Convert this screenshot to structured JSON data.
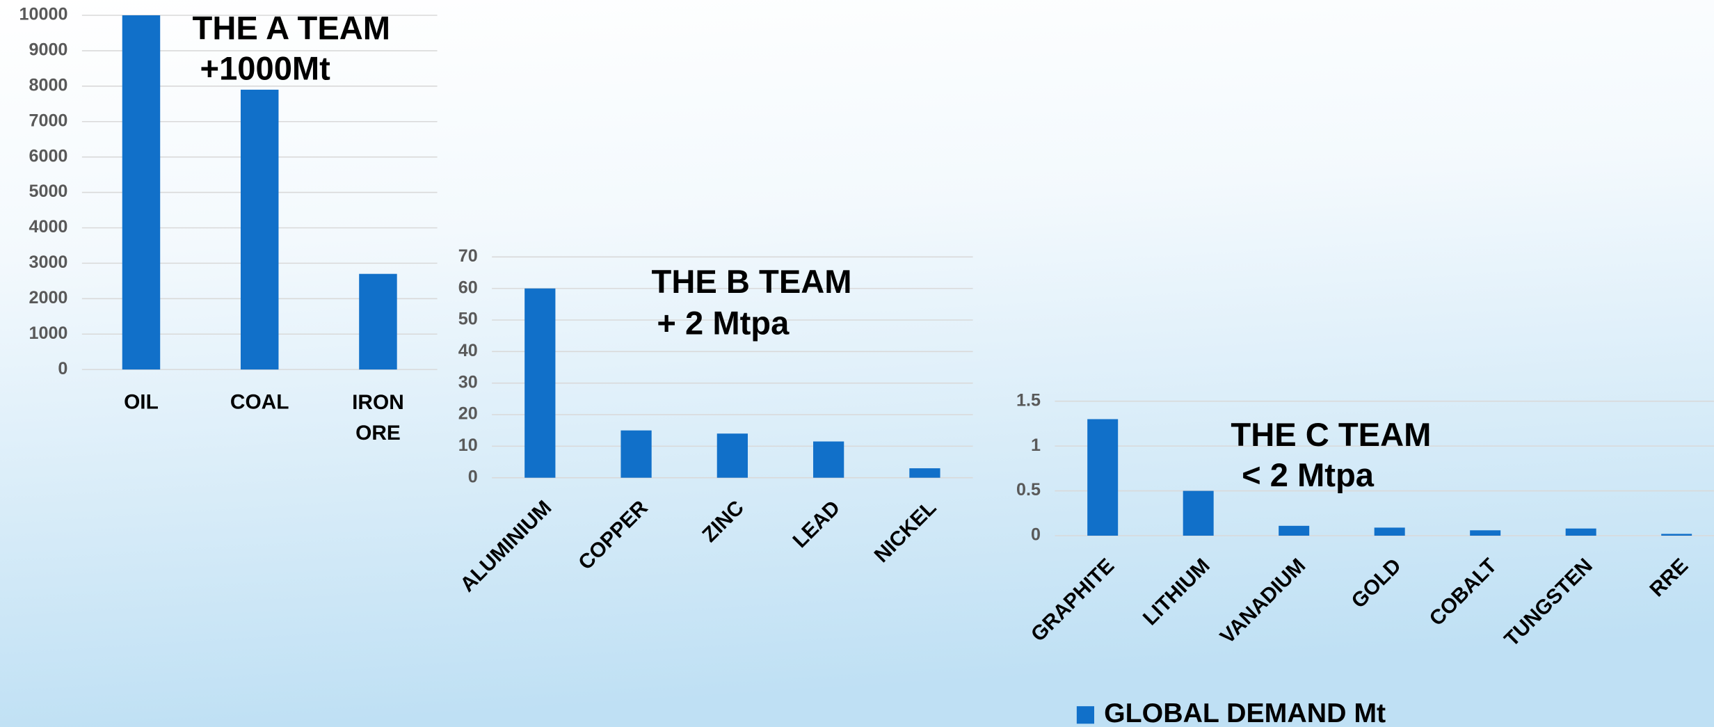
{
  "chart_data": [
    {
      "type": "bar",
      "title": "THE A TEAM",
      "subtitle": "+1000Mt",
      "categories": [
        "OIL",
        "COAL",
        "IRON ORE"
      ],
      "values": [
        10000,
        7900,
        2700
      ],
      "color": "#1170c9",
      "ylim": [
        0,
        10000
      ],
      "yticks": [
        0,
        1000,
        2000,
        3000,
        4000,
        5000,
        6000,
        7000,
        8000,
        9000,
        10000
      ],
      "grid": true
    },
    {
      "type": "bar",
      "title": "THE B TEAM",
      "subtitle": "+ 2 Mtpa",
      "categories": [
        "ALUMINIUM",
        "COPPER",
        "ZINC",
        "LEAD",
        "NICKEL"
      ],
      "values": [
        60,
        15,
        14,
        11.5,
        3
      ],
      "color": "#1170c9",
      "ylim": [
        0,
        70
      ],
      "yticks": [
        0,
        10,
        20,
        30,
        40,
        50,
        60,
        70
      ],
      "grid": true
    },
    {
      "type": "bar",
      "title": "THE C TEAM",
      "subtitle": "< 2 Mtpa",
      "categories": [
        "GRAPHITE",
        "LITHIUM",
        "VANADIUM",
        "GOLD",
        "COBALT",
        "TUNGSTEN",
        "RRE"
      ],
      "series": [
        {
          "name": "GLOBAL DEMAND Mt",
          "color": "#1170c9",
          "values": [
            1.3,
            0.5,
            0.11,
            0.09,
            0.06,
            0.08,
            0.02
          ]
        }
      ],
      "ylim": [
        0,
        1.5
      ],
      "yticks": [
        0,
        0.5,
        1,
        1.5
      ],
      "grid": true
    }
  ]
}
